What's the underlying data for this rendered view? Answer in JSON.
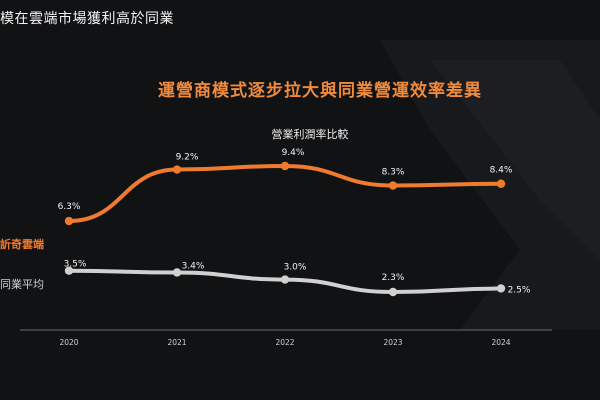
{
  "header": {
    "title": "模在雲端市場獲利高於同業",
    "headline": "運營商模式逐步拉大與同業營運效率差異"
  },
  "colors": {
    "background": "#111214",
    "accent_orange": "#f07a2e",
    "peer_gray": "#d0d0d0",
    "axis": "#8a8a8a"
  },
  "chart_data": {
    "type": "line",
    "title": "營業利潤率比較",
    "xlabel": "",
    "ylabel": "",
    "categories": [
      "2020",
      "2021",
      "2022",
      "2023",
      "2024"
    ],
    "x_labels": [
      "2020",
      "2021",
      "2022",
      "2023",
      "2024"
    ],
    "ylim": [
      0,
      12
    ],
    "grid": false,
    "series": [
      {
        "name": "訢奇雲端",
        "color": "#f07a2e",
        "values": [
          6.3,
          9.2,
          9.4,
          8.3,
          8.4
        ],
        "labels": [
          "6.3%",
          "9.2%",
          "9.4%",
          "8.3%",
          "8.4%"
        ]
      },
      {
        "name": "同業平均",
        "color": "#d0d0d0",
        "values": [
          3.5,
          3.4,
          3.0,
          2.3,
          2.5
        ],
        "labels": [
          "3.5%",
          "3.4%",
          "3.0%",
          "2.3%",
          "2.5%"
        ]
      }
    ]
  }
}
